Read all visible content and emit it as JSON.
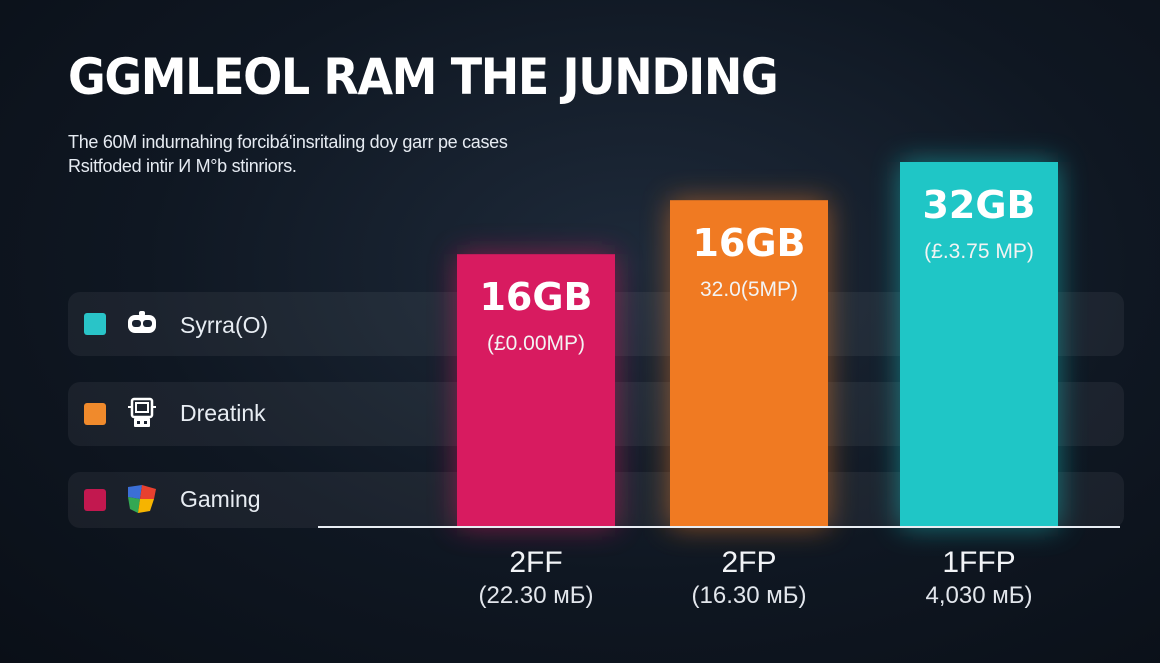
{
  "header": {
    "title": "GGMLEOL RAM THE JUNDING",
    "subtitle_line1": "The 60M indurnahing forcibá'insritaling doy garr pe cases",
    "subtitle_line2": "Rsitfoded intir И M°b stinriors."
  },
  "legend": [
    {
      "label": "Syrra(O)",
      "color": "#29c4c8",
      "icon": "vr-headset-icon"
    },
    {
      "label": "Dreatink",
      "color": "#f08a2c",
      "icon": "robot-icon"
    },
    {
      "label": "Gaming",
      "color": "#c2184f",
      "icon": "game-logo-icon"
    }
  ],
  "chart_data": {
    "type": "bar",
    "categories": [
      "2FF",
      "2FP",
      "1FFP"
    ],
    "category_sublabels": [
      "(22.30 мБ)",
      "(16.30 мБ)",
      "4,030 мБ)"
    ],
    "values": [
      16,
      16,
      32
    ],
    "value_labels": [
      "16GB",
      "16GB",
      "32GB"
    ],
    "value_sublabels": [
      "(£0.00MP)",
      "32.0(5MP)",
      "(£.3.75 MP)"
    ],
    "colors": [
      "#d81b60",
      "#f07a22",
      "#1fc6c6"
    ],
    "title": "GGMLEOL RAM THE JUNDING",
    "ylim": [
      0,
      32
    ],
    "grid": false
  }
}
